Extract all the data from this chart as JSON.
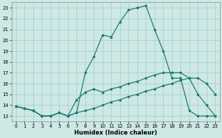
{
  "xlabel": "Humidex (Indice chaleur)",
  "bg_color": "#cde8e5",
  "grid_color": "#aacfcc",
  "line_color": "#1a7a6e",
  "xlim": [
    -0.5,
    23.5
  ],
  "ylim": [
    12.5,
    23.5
  ],
  "xticks": [
    0,
    1,
    2,
    3,
    4,
    5,
    6,
    7,
    8,
    9,
    10,
    11,
    12,
    13,
    14,
    15,
    16,
    17,
    18,
    19,
    20,
    21,
    22,
    23
  ],
  "yticks": [
    13,
    14,
    15,
    16,
    17,
    18,
    19,
    20,
    21,
    22,
    23
  ],
  "line1_x": [
    0,
    1,
    2,
    3,
    4,
    5,
    6,
    7,
    8,
    9,
    10,
    11,
    12,
    13,
    14,
    15,
    16,
    17,
    18,
    19,
    20,
    21,
    22,
    23
  ],
  "line1_y": [
    13.9,
    13.7,
    13.5,
    13.0,
    13.0,
    13.3,
    13.0,
    13.3,
    13.5,
    13.7,
    14.0,
    14.3,
    14.5,
    14.8,
    15.0,
    15.3,
    15.5,
    15.8,
    16.0,
    16.3,
    16.5,
    16.5,
    16.0,
    15.0
  ],
  "line2_x": [
    0,
    1,
    2,
    3,
    4,
    5,
    6,
    7,
    8,
    9,
    10,
    11,
    12,
    13,
    14,
    15,
    16,
    17,
    18,
    19,
    20,
    21,
    22,
    23
  ],
  "line2_y": [
    13.9,
    13.7,
    13.5,
    13.0,
    13.0,
    13.3,
    13.0,
    13.3,
    17.0,
    18.5,
    20.5,
    20.3,
    21.7,
    22.8,
    23.0,
    23.2,
    21.0,
    19.0,
    16.5,
    16.5,
    13.5,
    13.0,
    13.0,
    13.0
  ],
  "line3_x": [
    0,
    1,
    2,
    3,
    4,
    5,
    6,
    7,
    8,
    9,
    10,
    11,
    12,
    13,
    14,
    15,
    16,
    17,
    18,
    19,
    20,
    21,
    22,
    23
  ],
  "line3_y": [
    13.9,
    13.7,
    13.5,
    13.0,
    13.0,
    13.3,
    13.0,
    14.5,
    15.2,
    15.5,
    15.2,
    15.5,
    15.7,
    16.0,
    16.2,
    16.5,
    16.8,
    17.0,
    17.0,
    17.0,
    16.5,
    15.0,
    14.0,
    13.0
  ]
}
